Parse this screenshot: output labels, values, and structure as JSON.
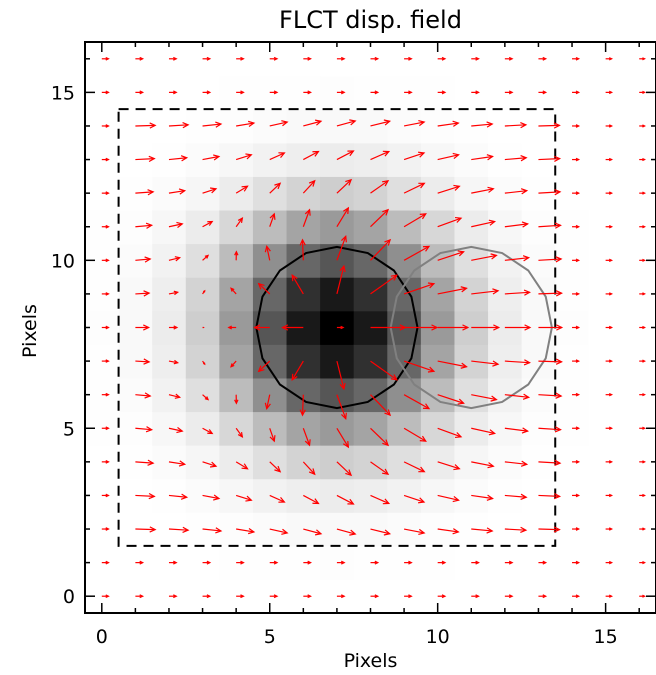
{
  "chart_data": {
    "type": "heatmap",
    "title": "FLCT disp. field",
    "xlabel": "Pixels",
    "ylabel": "Pixels",
    "xlim": [
      -0.5,
      16.5
    ],
    "ylim": [
      -0.5,
      16.5
    ],
    "xticks": [
      0,
      5,
      10,
      15
    ],
    "yticks": [
      0,
      5,
      10,
      15
    ],
    "image": {
      "description": "grayscale intensity, dark Gaussian blob",
      "center": [
        7,
        8
      ],
      "sigma": 2.2,
      "colormap": "gray_reversed"
    },
    "vector_field": {
      "color": "#ff0000",
      "grid_step": 1,
      "base_flow": [
        1,
        0
      ]
    },
    "overlays": [
      {
        "type": "rect",
        "style": "dashed",
        "color": "#000000",
        "x_range": [
          0.5,
          13.5
        ],
        "y_range": [
          1.5,
          14.5
        ]
      },
      {
        "type": "circle",
        "color": "#000000",
        "center": [
          7,
          8
        ],
        "radius": 2.4
      },
      {
        "type": "circle",
        "color": "#808080",
        "center": [
          11,
          8
        ],
        "radius": 2.4
      }
    ]
  }
}
